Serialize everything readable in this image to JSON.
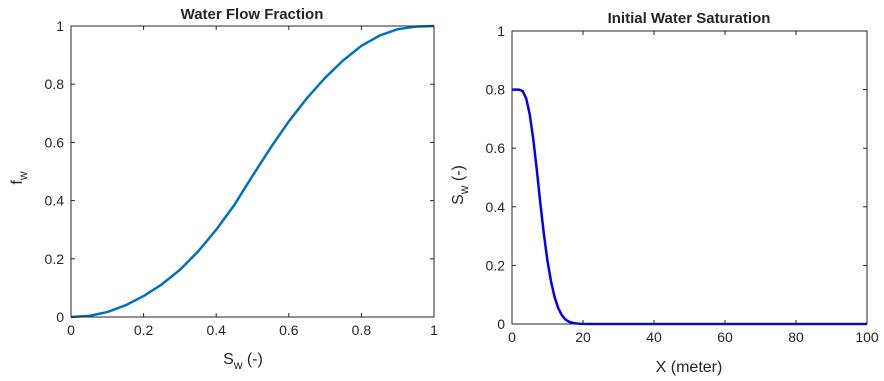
{
  "chart_data": [
    {
      "type": "line",
      "title": "Water Flow Fraction",
      "xlabel": "S",
      "xlabel_sub": "w",
      "xlabel_suffix": " (-)",
      "ylabel": "f",
      "ylabel_sub": "w",
      "xlim": [
        0,
        1
      ],
      "ylim": [
        0,
        1
      ],
      "xticks": [
        0,
        0.2,
        0.4,
        0.6,
        0.8,
        1
      ],
      "xtick_labels": [
        "0",
        "0.2",
        "0.4",
        "0.6",
        "0.8",
        "1"
      ],
      "yticks": [
        0,
        0.2,
        0.4,
        0.6,
        0.8,
        1
      ],
      "ytick_labels": [
        "0",
        "0.2",
        "0.4",
        "0.6",
        "0.8",
        "1"
      ],
      "grid": false,
      "series": [
        {
          "color": "#0072BD",
          "x": [
            0,
            0.05,
            0.1,
            0.15,
            0.2,
            0.25,
            0.3,
            0.35,
            0.4,
            0.45,
            0.5,
            0.55,
            0.6,
            0.65,
            0.7,
            0.75,
            0.8,
            0.85,
            0.9,
            0.95,
            1.0
          ],
          "y": [
            0,
            0.004,
            0.017,
            0.04,
            0.072,
            0.112,
            0.162,
            0.225,
            0.3,
            0.385,
            0.485,
            0.582,
            0.672,
            0.752,
            0.822,
            0.882,
            0.932,
            0.967,
            0.989,
            0.998,
            1.0
          ]
        }
      ]
    },
    {
      "type": "line",
      "title": "Initial Water Saturation",
      "xlabel": "X (meter)",
      "ylabel": "S",
      "ylabel_sub": "w",
      "ylabel_suffix": " (-)",
      "xlim": [
        0,
        100
      ],
      "ylim": [
        0,
        1
      ],
      "xticks": [
        0,
        20,
        40,
        60,
        80,
        100
      ],
      "xtick_labels": [
        "0",
        "20",
        "40",
        "60",
        "80",
        "100"
      ],
      "yticks": [
        0,
        0.2,
        0.4,
        0.6,
        0.8,
        1
      ],
      "ytick_labels": [
        "0",
        "0.2",
        "0.4",
        "0.6",
        "0.8",
        "1"
      ],
      "grid": false,
      "series": [
        {
          "color": "#0000FF",
          "x": [
            0,
            1,
            2,
            3,
            4,
            5,
            6,
            7,
            8,
            9,
            10,
            11,
            12,
            13,
            14,
            15,
            16,
            17,
            18,
            19,
            20,
            22,
            25,
            30,
            40,
            60,
            80,
            100
          ],
          "y": [
            0.8,
            0.8,
            0.8,
            0.795,
            0.77,
            0.715,
            0.63,
            0.525,
            0.41,
            0.305,
            0.215,
            0.145,
            0.092,
            0.055,
            0.031,
            0.016,
            0.008,
            0.004,
            0.002,
            0.001,
            0.0005,
            0.0002,
            0,
            0,
            0,
            0,
            0,
            0
          ]
        }
      ]
    }
  ]
}
